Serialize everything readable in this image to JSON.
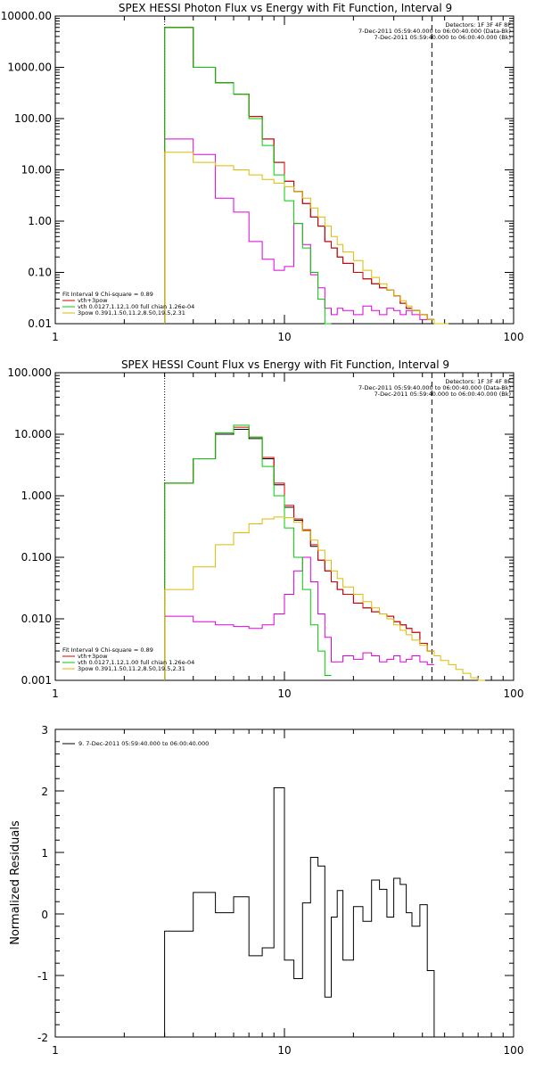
{
  "chart_data": [
    {
      "type": "line",
      "step": true,
      "title": "SPEX HESSI Photon Flux vs Energy with Fit Function, Interval 9",
      "xscale": "log",
      "yscale": "log",
      "xlim": [
        1,
        100
      ],
      "ylim": [
        0.01,
        10000
      ],
      "x_ticks": [
        "1",
        "10",
        "100"
      ],
      "y_ticks": [
        "0.01",
        "0.10",
        "1.00",
        "10.00",
        "100.00",
        "1000.00",
        "10000.00"
      ],
      "vlines": [
        {
          "x": 3,
          "style": "dotted"
        },
        {
          "x": 44,
          "style": "dashed"
        }
      ],
      "legend_top_right": [
        "Detectors: 1F 3F 4F 8F",
        "7-Dec-2011 05:59:40.000 to 06:00:40.000 (Data-Bk)",
        "7-Dec-2011 05:59:40.000 to 06:00:40.000 (Bk)"
      ],
      "legend_bottom_left": [
        "Fit Interval 9   Chi-square = 0.89",
        "vth+3pow",
        "vth 0.0127,1.12,1.00  full chian 1.26e-04",
        "3pow 0.391,1.50,11.2,8.50,19.5,2.31"
      ],
      "bin_edges": [
        3,
        4,
        5,
        6,
        7,
        8,
        9,
        10,
        11,
        12,
        13,
        14,
        15,
        16,
        17,
        18,
        20,
        22,
        24,
        26,
        28,
        30,
        32,
        34,
        36,
        39,
        42,
        45,
        48,
        52
      ],
      "series": [
        {
          "name": "Data-Bk",
          "color": "#000000",
          "values": [
            6000,
            1000,
            500,
            300,
            110,
            40,
            14,
            6,
            3.8,
            2.2,
            1.2,
            0.8,
            0.4,
            0.3,
            0.2,
            0.15,
            0.1,
            0.075,
            0.06,
            0.05,
            0.045,
            0.035,
            0.025,
            0.02,
            0.018,
            0.015,
            0.012,
            null,
            null
          ]
        },
        {
          "name": "Bk",
          "color": "#dd00dd",
          "values": [
            40,
            20,
            2.8,
            1.5,
            0.4,
            0.18,
            0.11,
            0.13,
            0.9,
            0.35,
            0.09,
            0.05,
            0.02,
            0.015,
            0.02,
            0.018,
            0.015,
            0.022,
            0.018,
            0.015,
            0.02,
            0.018,
            0.015,
            0.018,
            0.015,
            0.012,
            0.012,
            null,
            null
          ]
        },
        {
          "name": "vth+3pow",
          "color": "#dd0000",
          "values": [
            6000,
            1000,
            500,
            300,
            110,
            40,
            14,
            6,
            3.8,
            2.2,
            1.2,
            0.8,
            0.4,
            0.3,
            0.2,
            0.15,
            0.1,
            0.075,
            0.06,
            0.05,
            0.045,
            0.035,
            0.025,
            0.02,
            0.018,
            0.015,
            0.012,
            null,
            null
          ]
        },
        {
          "name": "vth 0.0127,1.12,1.00  full chian 1.26e-04",
          "color": "#00cc00",
          "values": [
            6000,
            1000,
            500,
            300,
            100,
            30,
            8,
            2.5,
            0.9,
            0.3,
            0.1,
            0.03,
            0.01,
            null,
            null,
            null,
            null,
            null,
            null,
            null,
            null,
            null,
            null,
            null,
            null,
            null,
            null,
            null,
            null
          ]
        },
        {
          "name": "3pow 0.391,1.50,11.2,8.50,19.5,2.31",
          "color": "#ddbb00",
          "values": [
            22,
            14,
            12,
            10,
            8,
            6.5,
            5.5,
            4.7,
            3.8,
            2.8,
            1.8,
            1.2,
            0.8,
            0.5,
            0.35,
            0.25,
            0.17,
            0.11,
            0.08,
            0.06,
            0.045,
            0.035,
            0.028,
            0.022,
            0.018,
            0.015,
            0.012,
            0.01,
            0.009
          ]
        }
      ]
    },
    {
      "type": "line",
      "step": true,
      "title": "SPEX HESSI Count Flux vs Energy with Fit Function, Interval 9",
      "xscale": "log",
      "yscale": "log",
      "xlim": [
        1,
        100
      ],
      "ylim": [
        0.001,
        100
      ],
      "x_ticks": [
        "1",
        "10",
        "100"
      ],
      "y_ticks": [
        "0.001",
        "0.010",
        "0.100",
        "1.000",
        "10.000",
        "100.000"
      ],
      "vlines": [
        {
          "x": 3,
          "style": "dotted"
        },
        {
          "x": 44,
          "style": "dashed"
        }
      ],
      "legend_top_right": [
        "Detectors: 1F 3F 4F 8F",
        "7-Dec-2011 05:59:40.000 to 06:00:40.000 (Data-Bk)",
        "7-Dec-2011 05:59:40.000 to 06:00:40.000 (Bk)"
      ],
      "legend_bottom_left": [
        "Fit Interval 9   Chi-square = 0.89",
        "vth+3pow",
        "vth 0.0127,1.12,1.00  full chian 1.26e-04",
        "3pow 0.391,1.50,11.2,8.50,19.5,2.31"
      ],
      "bin_edges": [
        3,
        4,
        5,
        6,
        7,
        8,
        9,
        10,
        11,
        12,
        13,
        14,
        15,
        16,
        17,
        18,
        20,
        22,
        24,
        26,
        28,
        30,
        32,
        34,
        36,
        39,
        42,
        45,
        48,
        52,
        56,
        60,
        65,
        70,
        75,
        80
      ],
      "series": [
        {
          "name": "Data-Bk",
          "color": "#000000",
          "values": [
            1.6,
            4,
            10,
            12,
            8.5,
            4,
            1.5,
            0.65,
            0.4,
            0.27,
            0.15,
            0.09,
            0.06,
            0.04,
            0.03,
            0.025,
            0.018,
            0.015,
            0.013,
            0.012,
            0.011,
            0.009,
            0.008,
            0.007,
            0.006,
            0.004,
            0.003,
            null,
            null,
            null,
            null,
            null,
            null,
            null,
            null
          ]
        },
        {
          "name": "Bk",
          "color": "#dd00dd",
          "values": [
            0.011,
            0.009,
            0.008,
            0.0075,
            0.007,
            0.008,
            0.012,
            0.025,
            0.06,
            0.1,
            0.04,
            0.012,
            0.005,
            0.002,
            0.002,
            0.0025,
            0.0022,
            0.0028,
            0.0025,
            0.002,
            0.0022,
            0.0025,
            0.002,
            0.0022,
            0.0025,
            0.002,
            0.0018,
            null,
            null,
            null,
            null,
            null,
            null,
            null,
            null
          ]
        },
        {
          "name": "vth+3pow",
          "color": "#dd0000",
          "values": [
            1.6,
            4,
            10.5,
            13,
            9,
            4.2,
            1.6,
            0.7,
            0.42,
            0.28,
            0.16,
            0.09,
            0.06,
            0.04,
            0.03,
            0.025,
            0.018,
            0.015,
            0.013,
            0.012,
            0.011,
            0.009,
            0.008,
            0.007,
            0.006,
            0.004,
            0.003,
            null,
            null,
            null,
            null,
            null,
            null,
            null,
            null
          ]
        },
        {
          "name": "vth 0.0127,1.12,1.00  full chian 1.26e-04",
          "color": "#00cc00",
          "values": [
            1.6,
            4,
            10.5,
            14,
            9,
            3,
            1,
            0.3,
            0.1,
            0.03,
            0.008,
            0.003,
            0.0012,
            null,
            null,
            null,
            null,
            null,
            null,
            null,
            null,
            null,
            null,
            null,
            null,
            null,
            null,
            null,
            null,
            null,
            null,
            null,
            null,
            null,
            null
          ]
        },
        {
          "name": "3pow 0.391,1.50,11.2,8.50,19.5,2.31",
          "color": "#ddbb00",
          "values": [
            0.03,
            0.07,
            0.16,
            0.25,
            0.35,
            0.42,
            0.45,
            0.44,
            0.37,
            0.27,
            0.19,
            0.13,
            0.09,
            0.06,
            0.045,
            0.033,
            0.025,
            0.019,
            0.015,
            0.012,
            0.01,
            0.008,
            0.0065,
            0.0055,
            0.0045,
            0.0037,
            0.003,
            0.0025,
            0.0021,
            0.0018,
            0.0015,
            0.0013,
            0.0011,
            0.001,
            null
          ]
        }
      ]
    },
    {
      "type": "line",
      "step": true,
      "title": "",
      "xscale": "log",
      "xlim": [
        1,
        100
      ],
      "ylim": [
        -2,
        3
      ],
      "ylabel": "Normalized Residuals",
      "x_ticks": [
        "1",
        "10",
        "100"
      ],
      "y_ticks": [
        "-2",
        "-1",
        "0",
        "1",
        "2",
        "3"
      ],
      "legend": [
        "9. 7-Dec-2011 05:59:40.000 to 06:00:40.000"
      ],
      "bin_edges": [
        3,
        4,
        5,
        6,
        7,
        8,
        9,
        10,
        11,
        12,
        13,
        14,
        15,
        16,
        17,
        18,
        20,
        22,
        24,
        26,
        28,
        30,
        32,
        34,
        36,
        39,
        42,
        45
      ],
      "series": [
        {
          "name": "9. 7-Dec-2011 05:59:40.000 to 06:00:40.000",
          "color": "#000000",
          "values": [
            -0.28,
            0.35,
            0.02,
            0.28,
            -0.68,
            -0.55,
            2.05,
            -0.75,
            -1.05,
            0.18,
            0.92,
            0.78,
            -1.35,
            -0.05,
            0.38,
            -0.75,
            0.12,
            -0.12,
            0.55,
            0.4,
            -0.05,
            0.58,
            0.48,
            0.02,
            -0.2,
            0.15,
            -0.92
          ]
        }
      ]
    }
  ]
}
